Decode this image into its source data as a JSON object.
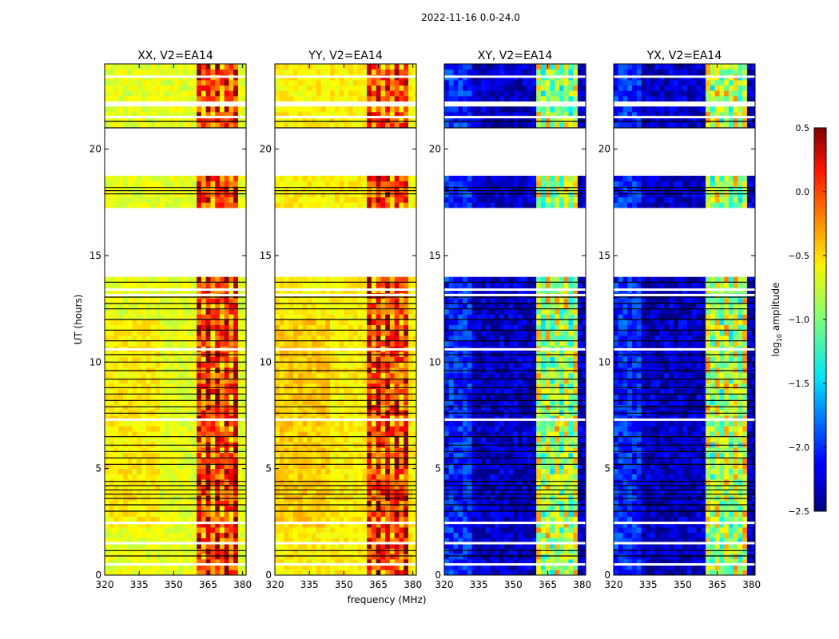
{
  "figure_title": "2022-11-16 0.0-24.0",
  "xlabel": "frequency (MHz)",
  "ylabel": "UT (hours)",
  "chart_data": {
    "type": "heatmap",
    "title": "2022-11-16 0.0-24.0",
    "xlabel": "frequency (MHz)",
    "ylabel": "UT (hours)",
    "xlim": [
      320,
      381.5
    ],
    "ylim": [
      0,
      24
    ],
    "xticks": [
      320,
      335,
      350,
      365,
      380
    ],
    "yticks": [
      0,
      5,
      10,
      15,
      20
    ],
    "colorbar": {
      "label": "log10 amplitude",
      "label_main": "log",
      "label_sub": "10",
      "label_rest": " amplitude",
      "range": [
        -2.5,
        0.5
      ],
      "ticks": [
        0.5,
        0.0,
        -0.5,
        -1.0,
        -1.5,
        -2.0,
        -2.5
      ],
      "tick_labels": [
        "0.5",
        "0.0",
        "−0.5",
        "−1.0",
        "−1.5",
        "−2.0",
        "−2.5"
      ],
      "colormap": "jet"
    },
    "rfi_band_mhz": [
      361,
      378
    ],
    "data_gaps_ut": [
      [
        14.0,
        17.2
      ],
      [
        18.7,
        20.9
      ],
      [
        21.9,
        22.3
      ]
    ],
    "panels": [
      {
        "name": "XX, V2=EA14",
        "level_outside_rfi": -0.7,
        "level_in_rfi": 0.1
      },
      {
        "name": "YY, V2=EA14",
        "level_outside_rfi": -0.6,
        "level_in_rfi": 0.1
      },
      {
        "name": "XY, V2=EA14",
        "level_outside_rfi": -2.3,
        "level_in_rfi": -0.7
      },
      {
        "name": "YX, V2=EA14",
        "level_outside_rfi": -2.3,
        "level_in_rfi": -0.7
      }
    ]
  }
}
